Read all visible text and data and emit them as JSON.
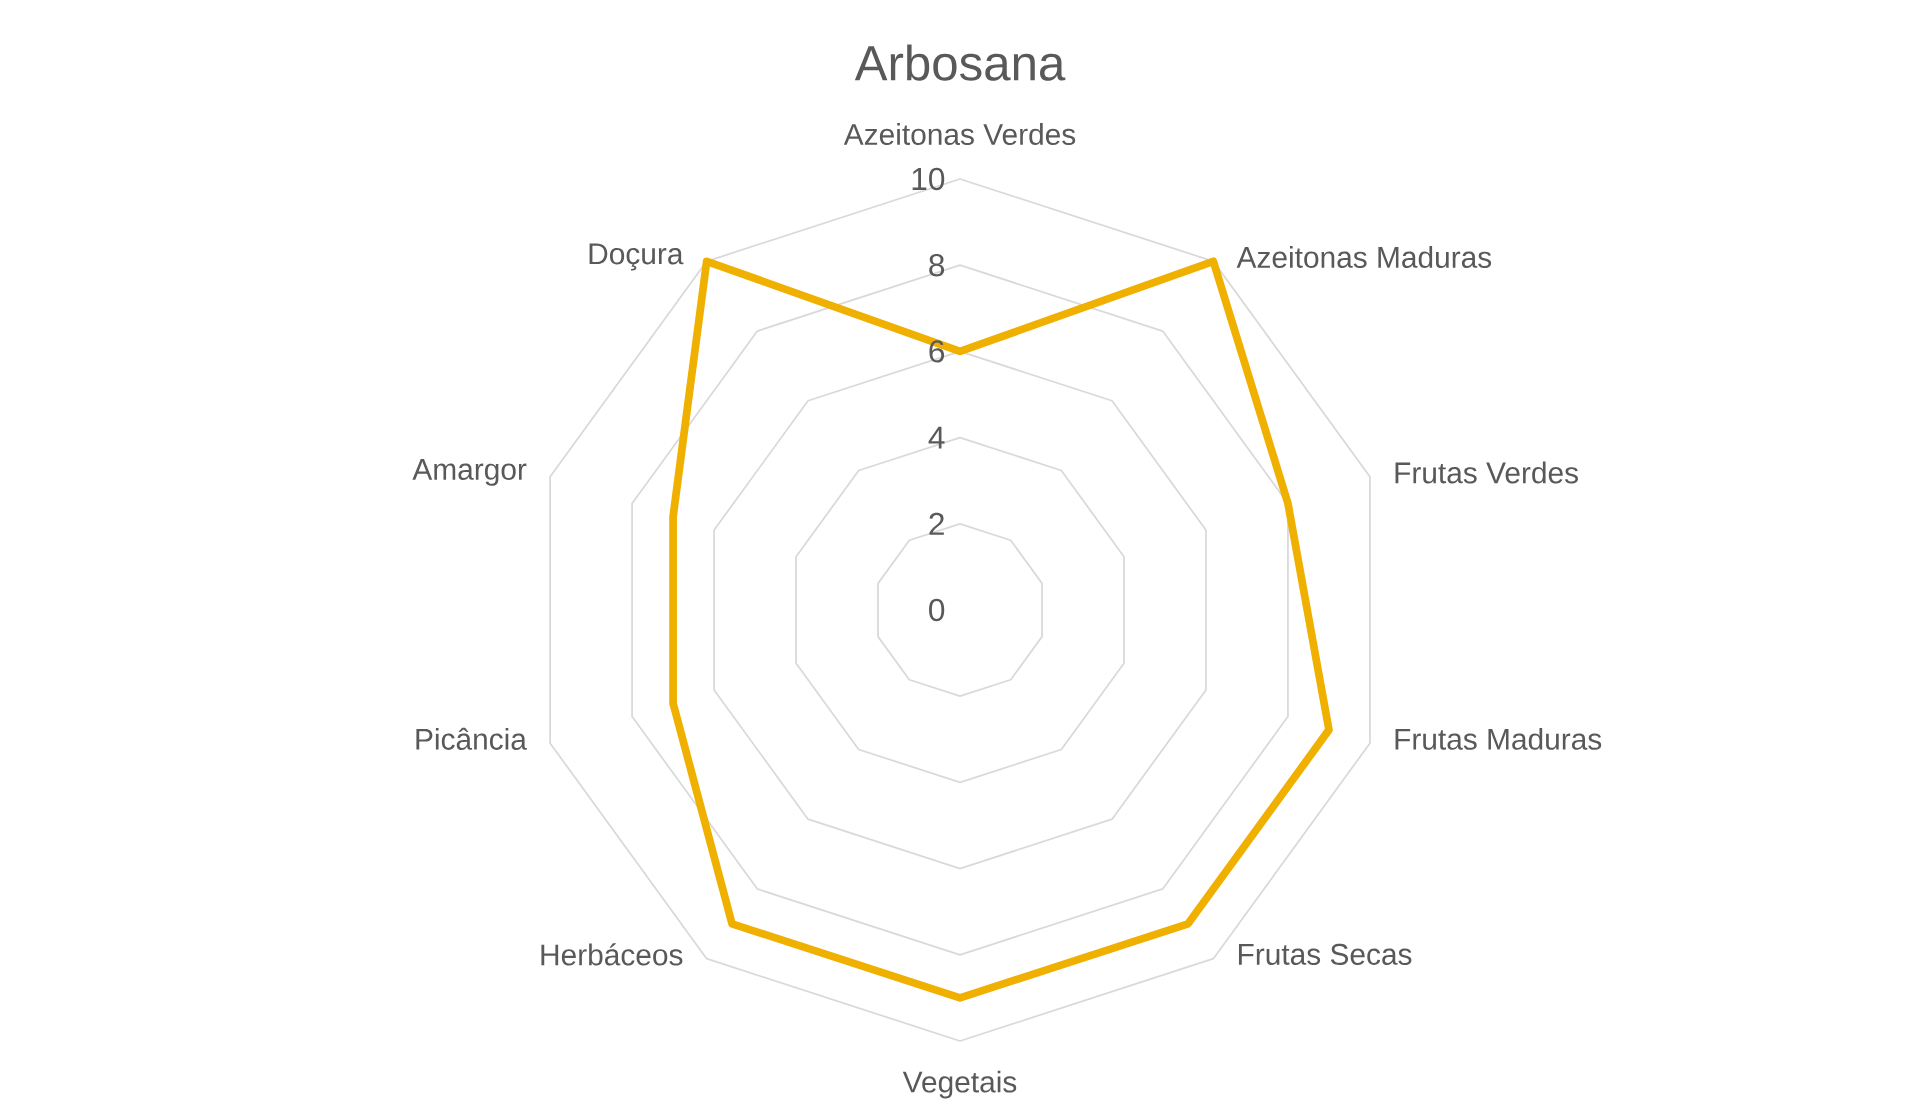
{
  "chart_data": {
    "type": "radar",
    "title": "Arbosana",
    "categories": [
      "Azeitonas Verdes",
      "Azeitonas Maduras",
      "Frutas Verdes",
      "Frutas Maduras",
      "Frutas Secas",
      "Vegetais",
      "Herbáceos",
      "Picância",
      "Amargor",
      "Doçura"
    ],
    "series": [
      {
        "color": "#f0b000",
        "values": [
          6,
          10,
          8,
          9,
          9,
          9,
          9,
          7,
          7,
          10
        ]
      }
    ],
    "ylim": [
      0,
      10
    ],
    "yticks": [
      0,
      2,
      4,
      6,
      8,
      10
    ],
    "grid": true
  }
}
